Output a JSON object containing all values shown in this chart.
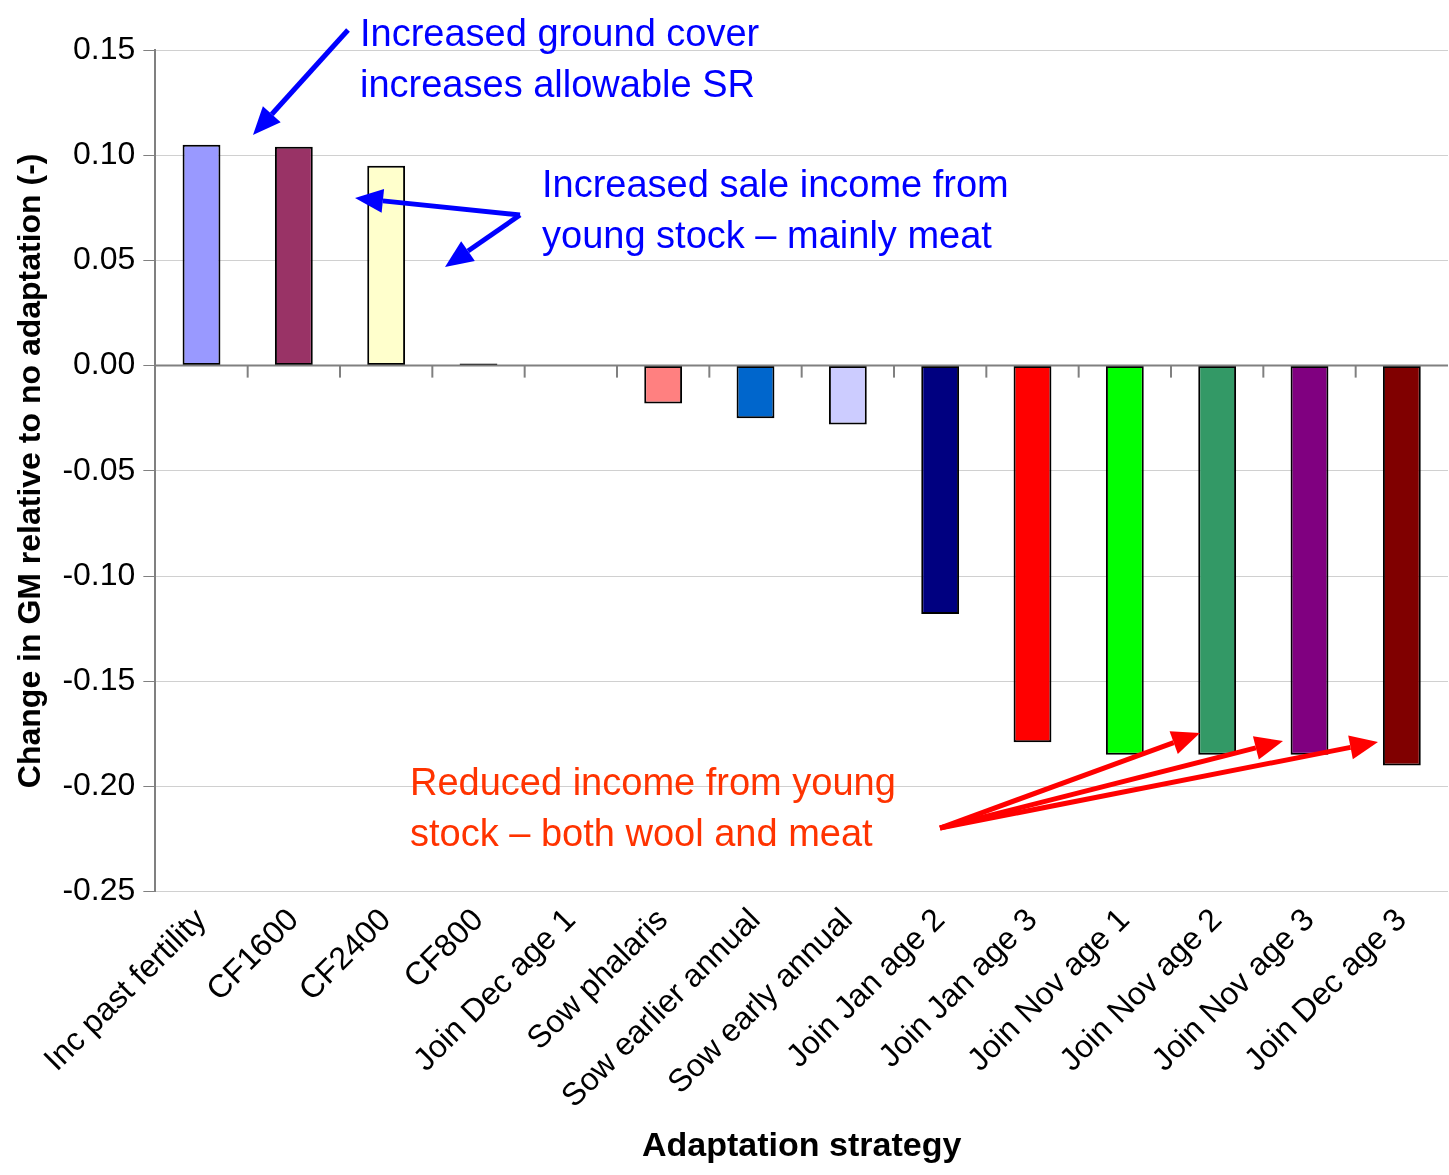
{
  "chart_data": {
    "type": "bar",
    "xlabel": "Adaptation strategy",
    "ylabel": "Change in GM relative to no adaptation (-)",
    "categories": [
      "Inc past fertility",
      "CF1600",
      "CF2400",
      "CF800",
      "Join Dec age 1",
      "Sow phalaris",
      "Sow earlier annual",
      "Sow early annual",
      "Join Jan age 2",
      "Join Jan age 3",
      "Join Nov age 1",
      "Join Nov age 2",
      "Join Nov age 3",
      "Join Dec age 3"
    ],
    "values": [
      0.105,
      0.104,
      0.095,
      0.001,
      0,
      -0.018,
      -0.025,
      -0.028,
      -0.118,
      -0.179,
      -0.185,
      -0.185,
      -0.185,
      -0.19
    ],
    "colors": [
      "#9999ff",
      "#993366",
      "#ffffcc",
      "#000000",
      "#000000",
      "#ff8080",
      "#0066cc",
      "#ccccff",
      "#000080",
      "#ff0000",
      "#00ff00",
      "#339966",
      "#800080",
      "#800000"
    ],
    "ylim": [
      -0.25,
      0.15
    ],
    "yticks": [
      {
        "value": -0.25,
        "label": "-0.25"
      },
      {
        "value": -0.2,
        "label": "-0.20"
      },
      {
        "value": -0.15,
        "label": "-0.15"
      },
      {
        "value": -0.1,
        "label": "-0.10"
      },
      {
        "value": -0.05,
        "label": "-0.05"
      },
      {
        "value": 0,
        "label": "0.00"
      },
      {
        "value": 0.05,
        "label": "0.05"
      },
      {
        "value": 0.1,
        "label": "0.10"
      },
      {
        "value": 0.15,
        "label": "0.15"
      }
    ],
    "grid": "y",
    "legend": false,
    "annotations": [
      "Increased ground cover increases allowable SR",
      "Increased sale income from young stock – mainly meat",
      "Reduced income from young stock – both wool and meat"
    ]
  }
}
